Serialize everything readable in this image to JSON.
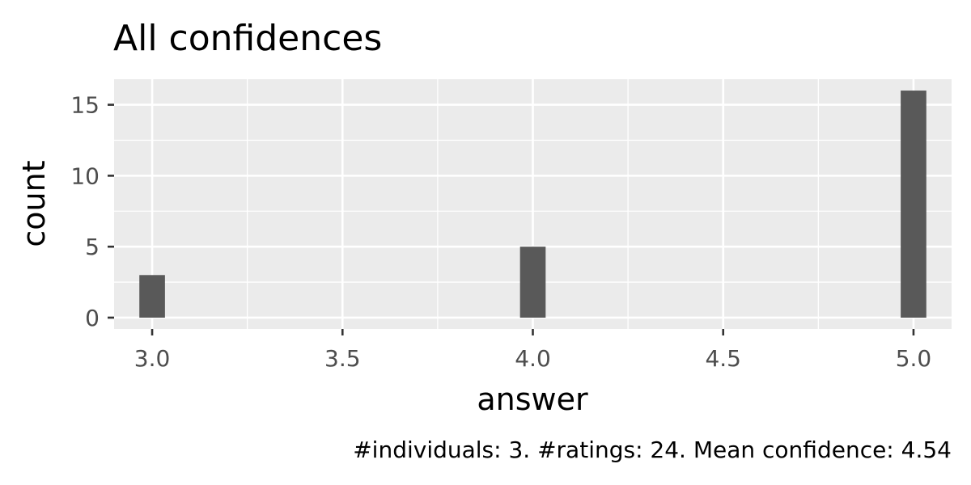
{
  "chart_data": {
    "type": "bar",
    "title": "All confidences",
    "xlabel": "answer",
    "ylabel": "count",
    "caption": "#individuals: 3. #ratings: 24. Mean confidence: 4.54",
    "x": [
      3.0,
      4.0,
      5.0
    ],
    "values": [
      3,
      5,
      16
    ],
    "xlim": [
      2.9,
      5.1
    ],
    "ylim": [
      -0.8,
      16.8
    ],
    "x_ticks": [
      3.0,
      3.5,
      4.0,
      4.5,
      5.0
    ],
    "x_tick_labels": [
      "3.0",
      "3.5",
      "4.0",
      "4.5",
      "5.0"
    ],
    "y_ticks": [
      0,
      5,
      10,
      15
    ],
    "y_tick_labels": [
      "0",
      "5",
      "10",
      "15"
    ],
    "grid": true,
    "colors": {
      "bar": "#595959",
      "panel": "#ebebeb",
      "grid": "#ffffff"
    }
  }
}
